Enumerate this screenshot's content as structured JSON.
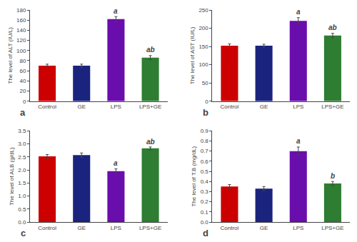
{
  "chart_data": [
    {
      "type": "bar",
      "title": "a",
      "ylabel": "The level of ALT (IU/L)",
      "categories": [
        "Control",
        "GE",
        "LPS",
        "LPS+GE"
      ],
      "values": [
        70,
        70,
        162,
        86
      ],
      "errors": [
        3,
        3,
        5,
        4
      ],
      "colors": [
        "#cc0000",
        "#1a237e",
        "#6a0dad",
        "#2e7d32"
      ],
      "ylim": [
        0,
        180
      ],
      "yticks": [
        0,
        20,
        40,
        60,
        80,
        100,
        120,
        140,
        160,
        180
      ],
      "grid": false,
      "annotations": [
        {
          "x": "LPS",
          "y": 168,
          "text": "a"
        },
        {
          "x": "LPS+GE",
          "y": 91,
          "text": "ab"
        }
      ]
    },
    {
      "type": "bar",
      "title": "b",
      "ylabel": "The level of AST (IU/L)",
      "categories": [
        "Control",
        "GE",
        "LPS",
        "LPS+GE"
      ],
      "values": [
        152,
        152,
        220,
        180
      ],
      "errors": [
        5,
        4,
        9,
        6
      ],
      "colors": [
        "#cc0000",
        "#1a237e",
        "#6a0dad",
        "#2e7d32"
      ],
      "ylim": [
        0,
        250
      ],
      "yticks": [
        0,
        50,
        100,
        150,
        200,
        250
      ],
      "grid": false,
      "annotations": [
        {
          "x": "LPS",
          "y": 230,
          "text": "a"
        },
        {
          "x": "LPS+GE",
          "y": 187,
          "text": "ab"
        }
      ]
    },
    {
      "type": "bar",
      "title": "c",
      "ylabel": "The level of ALB (g/dL)",
      "categories": [
        "Control",
        "GE",
        "LPS",
        "LPS+GE"
      ],
      "values": [
        2.52,
        2.57,
        1.95,
        2.83
      ],
      "errors": [
        0.07,
        0.08,
        0.09,
        0.05
      ],
      "colors": [
        "#cc0000",
        "#1a237e",
        "#6a0dad",
        "#2e7d32"
      ],
      "ylim": [
        0,
        3.5
      ],
      "yticks": [
        {
          "value": 0,
          "label": "0.0"
        },
        0.5,
        {
          "value": 1,
          "label": "1.0"
        },
        1.5,
        {
          "value": 2,
          "label": "2.0"
        },
        2.5,
        {
          "value": 3,
          "label": "3.0"
        },
        3.5
      ],
      "grid": false,
      "annotations": [
        {
          "x": "LPS",
          "y": 2.05,
          "text": "a"
        },
        {
          "x": "LPS+GE",
          "y": 2.89,
          "text": "ab"
        }
      ]
    },
    {
      "type": "bar",
      "title": "d",
      "ylabel": "The level of T.B (mg/dL)",
      "categories": [
        "Control",
        "GE",
        "LPS",
        "LPS+GE"
      ],
      "values": [
        0.35,
        0.33,
        0.7,
        0.38
      ],
      "errors": [
        0.02,
        0.02,
        0.04,
        0.02
      ],
      "colors": [
        "#cc0000",
        "#1a237e",
        "#6a0dad",
        "#2e7d32"
      ],
      "ylim": [
        0,
        0.9
      ],
      "yticks": [
        {
          "value": 0,
          "label": "0.0"
        },
        0.1,
        0.2,
        0.3,
        0.4,
        0.5,
        0.6,
        0.7,
        0.8,
        0.9
      ],
      "grid": false,
      "annotations": [
        {
          "x": "LPS",
          "y": 0.745,
          "text": "a"
        },
        {
          "x": "LPS+GE",
          "y": 0.402,
          "text": "b"
        }
      ]
    }
  ]
}
